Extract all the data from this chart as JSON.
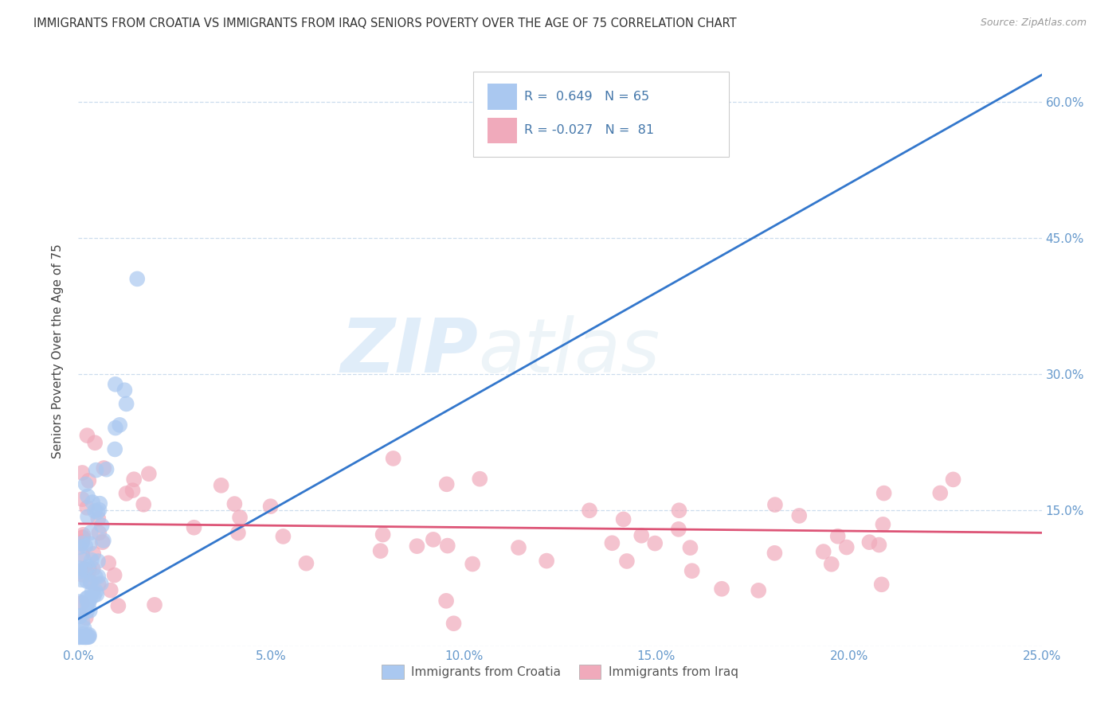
{
  "title": "IMMIGRANTS FROM CROATIA VS IMMIGRANTS FROM IRAQ SENIORS POVERTY OVER THE AGE OF 75 CORRELATION CHART",
  "source": "Source: ZipAtlas.com",
  "ylabel": "Seniors Poverty Over the Age of 75",
  "xlim": [
    0.0,
    0.25
  ],
  "ylim": [
    0.0,
    0.65
  ],
  "croatia_color": "#aac8f0",
  "iraq_color": "#f0aabb",
  "croatia_R": 0.649,
  "croatia_N": 65,
  "iraq_R": -0.027,
  "iraq_N": 81,
  "legend_label_croatia": "Immigrants from Croatia",
  "legend_label_iraq": "Immigrants from Iraq",
  "watermark_zip": "ZIP",
  "watermark_atlas": "atlas",
  "croatia_line_x": [
    0.0,
    0.25
  ],
  "croatia_line_y": [
    0.03,
    0.63
  ],
  "iraq_line_x": [
    0.0,
    0.25
  ],
  "iraq_line_y": [
    0.135,
    0.125
  ],
  "ytick_vals": [
    0.0,
    0.15,
    0.3,
    0.45,
    0.6
  ],
  "ytick_labels": [
    "",
    "15.0%",
    "30.0%",
    "45.0%",
    "60.0%"
  ],
  "xtick_vals": [
    0.0,
    0.05,
    0.1,
    0.15,
    0.2,
    0.25
  ],
  "xtick_labels": [
    "0.0%",
    "5.0%",
    "10.0%",
    "15.0%",
    "20.0%",
    "25.0%"
  ],
  "tick_color": "#6699cc",
  "grid_color": "#ccddee",
  "title_color": "#333333",
  "source_color": "#999999",
  "ylabel_color": "#444444",
  "legend_text_color": "#4477aa"
}
